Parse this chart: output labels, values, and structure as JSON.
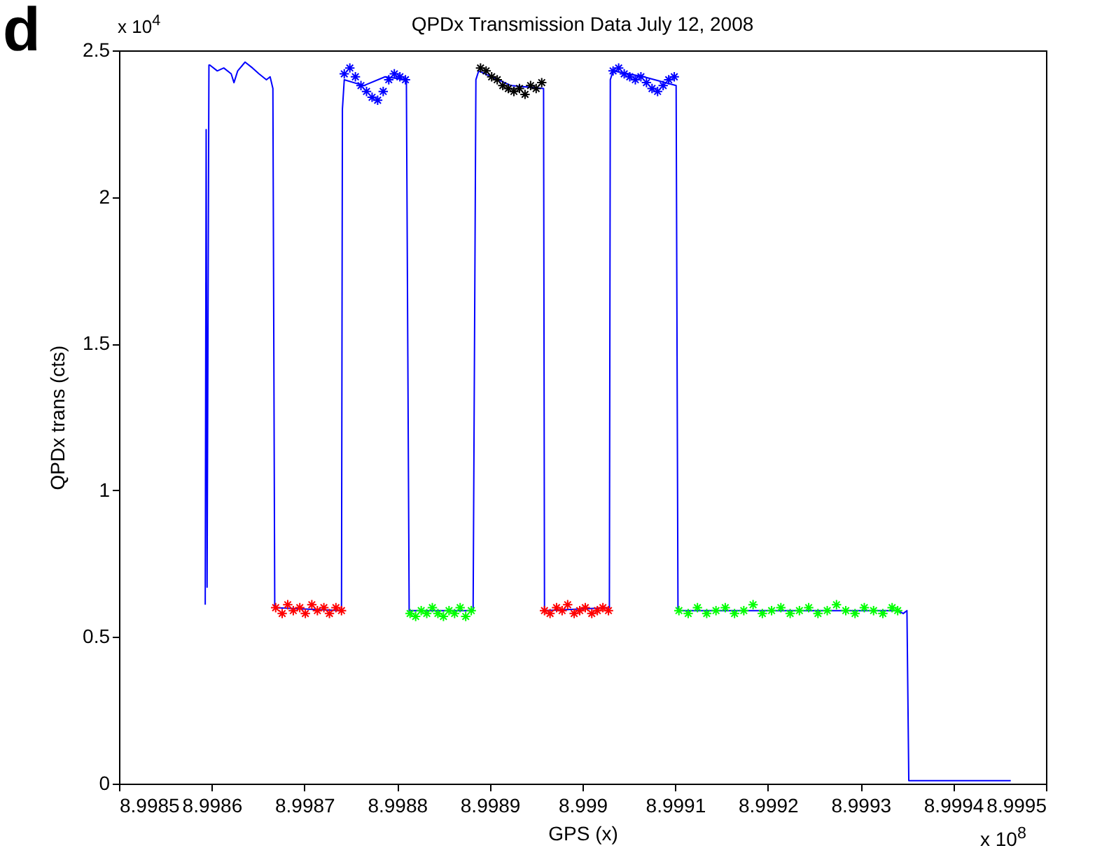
{
  "chart_data": {
    "type": "line",
    "title": "QPDx Transmission Data July 12, 2008",
    "xlabel": "GPS (x)",
    "ylabel": "QPDx trans (cts)",
    "annotations": [
      "d",
      "x 10$^{4}$",
      "x 10$^{8}$"
    ],
    "xlim": [
      8.9985,
      8.9995
    ],
    "xticks": [
      8.9985,
      8.9986,
      8.9987,
      8.9988,
      8.9989,
      8.999,
      8.9991,
      8.9992,
      8.9993,
      8.9994,
      8.9995
    ],
    "ylim": [
      0,
      2.5
    ],
    "yticks": [
      0,
      0.5,
      1,
      1.5,
      2,
      2.5
    ],
    "grid": false,
    "series": [
      {
        "color": "#0000ff",
        "line_style": "solid",
        "marker": "none",
        "x": [
          8.998593,
          8.998594,
          8.998595,
          8.998597,
          8.998598,
          8.998606,
          8.998613,
          8.998621,
          8.998624,
          8.998628,
          8.998636,
          8.998644,
          8.998651,
          8.998659,
          8.998663,
          8.998666,
          8.998668,
          8.99874,
          8.998741,
          8.998743,
          8.998764,
          8.998787,
          8.99881,
          8.998813,
          8.998882,
          8.998885,
          8.998888,
          8.998923,
          8.998958,
          8.998959,
          8.999029,
          8.99903,
          8.999033,
          8.999066,
          8.999101,
          8.999103,
          8.99934,
          8.999346,
          8.99935,
          8.999352,
          8.999462
        ],
        "values": [
          0.61,
          2.23,
          0.67,
          2.45,
          2.45,
          2.43,
          2.44,
          2.42,
          2.39,
          2.43,
          2.46,
          2.44,
          2.42,
          2.4,
          2.41,
          2.37,
          0.6,
          0.59,
          2.3,
          2.4,
          2.38,
          2.41,
          2.4,
          0.59,
          0.59,
          2.4,
          2.43,
          2.38,
          2.37,
          0.59,
          0.6,
          2.4,
          2.43,
          2.41,
          2.38,
          0.59,
          0.59,
          0.58,
          0.59,
          0.01,
          0.01
        ]
      },
      {
        "type": "scatter",
        "color": "#ff0000",
        "marker": "cross",
        "x": [
          8.998669,
          8.998676,
          8.998682,
          8.998688,
          8.998695,
          8.998701,
          8.998708,
          8.998714,
          8.998721,
          8.998727,
          8.998734,
          8.99874
        ],
        "values": [
          0.6,
          0.58,
          0.61,
          0.59,
          0.6,
          0.58,
          0.61,
          0.59,
          0.6,
          0.58,
          0.6,
          0.59
        ]
      },
      {
        "type": "scatter",
        "color": "#0000ff",
        "marker": "cross",
        "x": [
          8.998743,
          8.998749,
          8.998755,
          8.998761,
          8.998767,
          8.998773,
          8.998779,
          8.998785,
          8.998791,
          8.998797,
          8.998803,
          8.998809
        ],
        "values": [
          2.42,
          2.44,
          2.41,
          2.38,
          2.36,
          2.34,
          2.33,
          2.36,
          2.4,
          2.42,
          2.41,
          2.4
        ]
      },
      {
        "type": "scatter",
        "color": "#00ff00",
        "marker": "cross",
        "x": [
          8.998814,
          8.99882,
          8.998826,
          8.998832,
          8.998838,
          8.998844,
          8.99885,
          8.998856,
          8.998862,
          8.998868,
          8.998874,
          8.99888
        ],
        "values": [
          0.58,
          0.57,
          0.59,
          0.58,
          0.6,
          0.58,
          0.57,
          0.59,
          0.58,
          0.6,
          0.57,
          0.59
        ]
      },
      {
        "type": "scatter",
        "color": "#000000",
        "marker": "cross",
        "x": [
          8.99889,
          8.998896,
          8.998902,
          8.998908,
          8.998914,
          8.99892,
          8.998926,
          8.998932,
          8.998938,
          8.998944,
          8.99895,
          8.998956
        ],
        "values": [
          2.44,
          2.43,
          2.41,
          2.4,
          2.38,
          2.37,
          2.36,
          2.37,
          2.35,
          2.38,
          2.37,
          2.39
        ]
      },
      {
        "type": "scatter",
        "color": "#ff0000",
        "marker": "cross",
        "x": [
          8.998959,
          8.998965,
          8.998972,
          8.998978,
          8.998984,
          8.998991,
          8.998997,
          8.999003,
          8.99901,
          8.999016,
          8.999022,
          8.999028
        ],
        "values": [
          0.59,
          0.58,
          0.6,
          0.59,
          0.61,
          0.58,
          0.59,
          0.6,
          0.58,
          0.59,
          0.6,
          0.59
        ]
      },
      {
        "type": "scatter",
        "color": "#0000ff",
        "marker": "cross",
        "x": [
          8.999033,
          8.999039,
          8.999045,
          8.999051,
          8.999057,
          8.999063,
          8.999069,
          8.999075,
          8.999081,
          8.999087,
          8.999093,
          8.999099
        ],
        "values": [
          2.43,
          2.44,
          2.42,
          2.41,
          2.4,
          2.41,
          2.39,
          2.37,
          2.36,
          2.38,
          2.4,
          2.41
        ]
      },
      {
        "type": "scatter",
        "color": "#00ff00",
        "marker": "cross",
        "x": [
          8.999104,
          8.999114,
          8.999124,
          8.999134,
          8.999144,
          8.999154,
          8.999164,
          8.999174,
          8.999184,
          8.999194,
          8.999204,
          8.999214,
          8.999224,
          8.999234,
          8.999244,
          8.999254,
          8.999264,
          8.999274,
          8.999284,
          8.999294,
          8.999304,
          8.999314,
          8.999324,
          8.999334,
          8.99934
        ],
        "values": [
          0.59,
          0.58,
          0.6,
          0.58,
          0.59,
          0.6,
          0.58,
          0.59,
          0.61,
          0.58,
          0.59,
          0.6,
          0.58,
          0.59,
          0.6,
          0.58,
          0.59,
          0.61,
          0.59,
          0.58,
          0.6,
          0.59,
          0.58,
          0.6,
          0.59
        ]
      }
    ]
  }
}
